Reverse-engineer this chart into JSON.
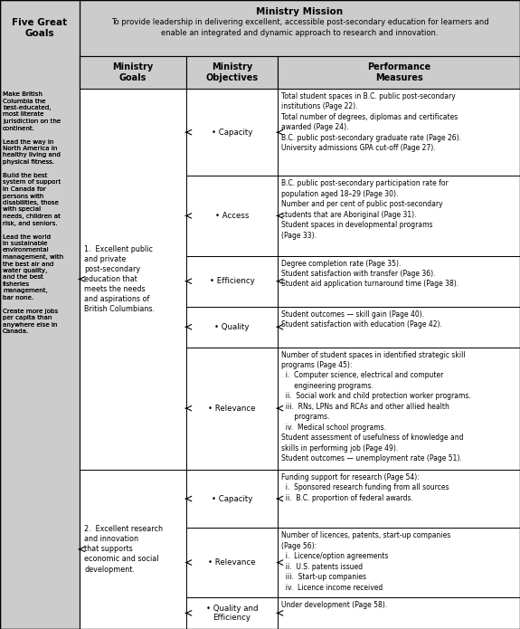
{
  "fig_width": 5.75,
  "fig_height": 6.95,
  "bg_color": "#ffffff",
  "light_gray": "#cccccc",
  "ministry_mission_title": "Ministry Mission",
  "ministry_mission_text": "To provide leadership in delivering excellent, accessible post-secondary education for learners and\nenable an integrated and dynamic approach to research and innovation.",
  "five_great_goals_label": "Five Great\nGoals",
  "col_headers": [
    "Ministry\nGoals",
    "Ministry\nObjectives",
    "Performance\nMeasures"
  ],
  "five_goals_text": "Make British\nColumbia the\nbest-educated,\nmost literate\njurisdiction on the\ncontinent.\n\nLead the way in\nNorth America in\nhealthy living and\nphysical fitness.\n\nBuild the best\nsystem of support\nin Canada for\npersons with\ndisabilities, those\nwith special\nneeds, children at\nrisk, and seniors.\n\nLead the world\nin sustainable\nenvironmental\nmanagement, with\nthe best air and\nwater quality,\nand the best\nfisheries\nmanagement,\nbar none.\n\nCreate more jobs\nper capita than\nanywhere else in\nCanada.",
  "goal1_text": "1.  Excellent public\nand private\npost-secondary\neducation that\nmeets the needs\nand aspirations of\nBritish Columbians.",
  "goal2_text": "2.  Excellent research\nand innovation\nthat supports\neconomic and social\ndevelopment.",
  "objectives_group1": [
    "Capacity",
    "Access",
    "Efficiency",
    "Quality",
    "Relevance"
  ],
  "objectives_group2": [
    "Capacity",
    "Relevance",
    "Quality and\nEfficiency"
  ],
  "perf_measures": {
    "Capacity_1": "Total student spaces in B.C. public post-secondary\ninstitutions (Page 22).\nTotal number of degrees, diplomas and certificates\nawarded (Page 24).\nB.C. public post-secondary graduate rate (Page 26).\nUniversity admissions GPA cut-off (Page 27).",
    "Access_1": "B.C. public post-secondary participation rate for\npopulation aged 18–29 (Page 30).\nNumber and per cent of public post-secondary\nstudents that are Aboriginal (Page 31).\nStudent spaces in developmental programs\n(Page 33).",
    "Efficiency_1": "Degree completion rate (Page 35).\nStudent satisfaction with transfer (Page 36).\nStudent aid application turnaround time (Page 38).",
    "Quality_1": "Student outcomes — skill gain (Page 40).\nStudent satisfaction with education (Page 42).",
    "Relevance_1": "Number of student spaces in identified strategic skill\nprograms (Page 45):\n  i.  Computer science, electrical and computer\n      engineering programs.\n  ii.  Social work and child protection worker programs.\n  iii.  RNs, LPNs and RCAs and other allied health\n      programs.\n  iv.  Medical school programs.\nStudent assessment of usefulness of knowledge and\nskills in performing job (Page 49).\nStudent outcomes — unemployment rate (Page 51).",
    "Capacity_2": "Funding support for research (Page 54):\n  i.  Sponsored research funding from all sources\n  ii.  B.C. proportion of federal awards.",
    "Relevance_2": "Number of licences, patents, start-up companies\n(Page 56):\n  i.  Licence/option agreements\n  ii.  U.S. patents issued\n  iii.  Start-up companies\n  iv.  Licence income received",
    "QualEff_2": "Under development (Page 58)."
  }
}
